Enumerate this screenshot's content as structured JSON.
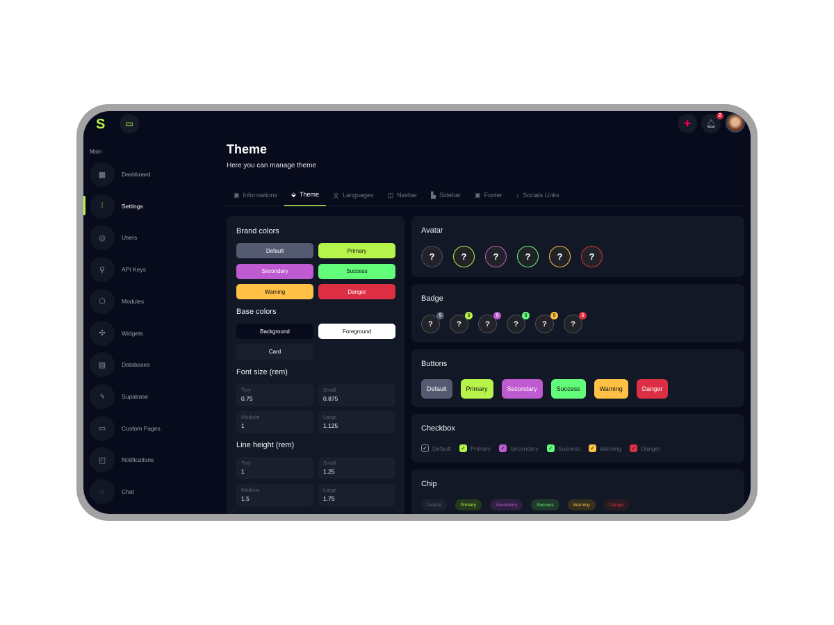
{
  "colors": {
    "default": "#545b70",
    "primary": "#b6f44b",
    "secondary": "#bf5bd0",
    "success": "#62fc7a",
    "warning": "#fec045",
    "danger": "#dd2f43",
    "background": "#070b1b",
    "card": "#131826"
  },
  "header": {
    "logo": "S",
    "layout_icon": "layout-icon",
    "language_icon": "uk-flag-icon",
    "notifications_count": "2",
    "bell_icon": "bell-icon"
  },
  "sidebar": {
    "section_label": "Main",
    "items": [
      {
        "label": "Dashboard",
        "icon": "▦"
      },
      {
        "label": "Settings",
        "icon": "⫶"
      },
      {
        "label": "Users",
        "icon": "◎"
      },
      {
        "label": "API Keys",
        "icon": "⚲"
      },
      {
        "label": "Modules",
        "icon": "⬡"
      },
      {
        "label": "Widgets",
        "icon": "✣"
      },
      {
        "label": "Databases",
        "icon": "▤"
      },
      {
        "label": "Supabase",
        "icon": "ϟ"
      },
      {
        "label": "Custom Pages",
        "icon": "▭"
      },
      {
        "label": "Notifications",
        "icon": "◰"
      },
      {
        "label": "Chat",
        "icon": "◌"
      }
    ],
    "active_index": 1
  },
  "page": {
    "title": "Theme",
    "subtitle": "Here you can manage theme"
  },
  "tabs": [
    {
      "label": "Informations",
      "icon": "▣"
    },
    {
      "label": "Theme",
      "icon": "⬙"
    },
    {
      "label": "Languages",
      "icon": "文"
    },
    {
      "label": "Navbar",
      "icon": "◫"
    },
    {
      "label": "Sidebar",
      "icon": "▙"
    },
    {
      "label": "Footer",
      "icon": "▣"
    },
    {
      "label": "Socials Links",
      "icon": "♪"
    }
  ],
  "active_tab": 1,
  "left": {
    "brand_title": "Brand colors",
    "brand": [
      "Default",
      "Primary",
      "Secondary",
      "Success",
      "Warning",
      "Danger"
    ],
    "base_title": "Base colors",
    "base": [
      "Background",
      "Foreground",
      "Card"
    ],
    "font_title": "Font size (rem)",
    "font": [
      {
        "label": "Tiny",
        "value": "0.75"
      },
      {
        "label": "Small",
        "value": "0.875"
      },
      {
        "label": "Medium",
        "value": "1"
      },
      {
        "label": "Large",
        "value": "1.125"
      }
    ],
    "line_title": "Line height (rem)",
    "line": [
      {
        "label": "Tiny",
        "value": "1"
      },
      {
        "label": "Small",
        "value": "1.25"
      },
      {
        "label": "Medium",
        "value": "1.5"
      },
      {
        "label": "Large",
        "value": "1.75"
      }
    ]
  },
  "avatar": {
    "title": "Avatar",
    "placeholder": "?"
  },
  "badge": {
    "title": "Badge",
    "placeholder": "?",
    "count": "5"
  },
  "buttons": {
    "title": "Buttons",
    "items": [
      "Default",
      "Primary",
      "Secondary",
      "Success",
      "Warning",
      "Danger"
    ]
  },
  "checkbox": {
    "title": "Checkbox",
    "items": [
      "Default",
      "Primary",
      "Secondary",
      "Success",
      "Warning",
      "Danger"
    ]
  },
  "chip": {
    "title": "Chip",
    "items": [
      "Default",
      "Primary",
      "Secondary",
      "Success",
      "Warning",
      "Danger"
    ]
  }
}
